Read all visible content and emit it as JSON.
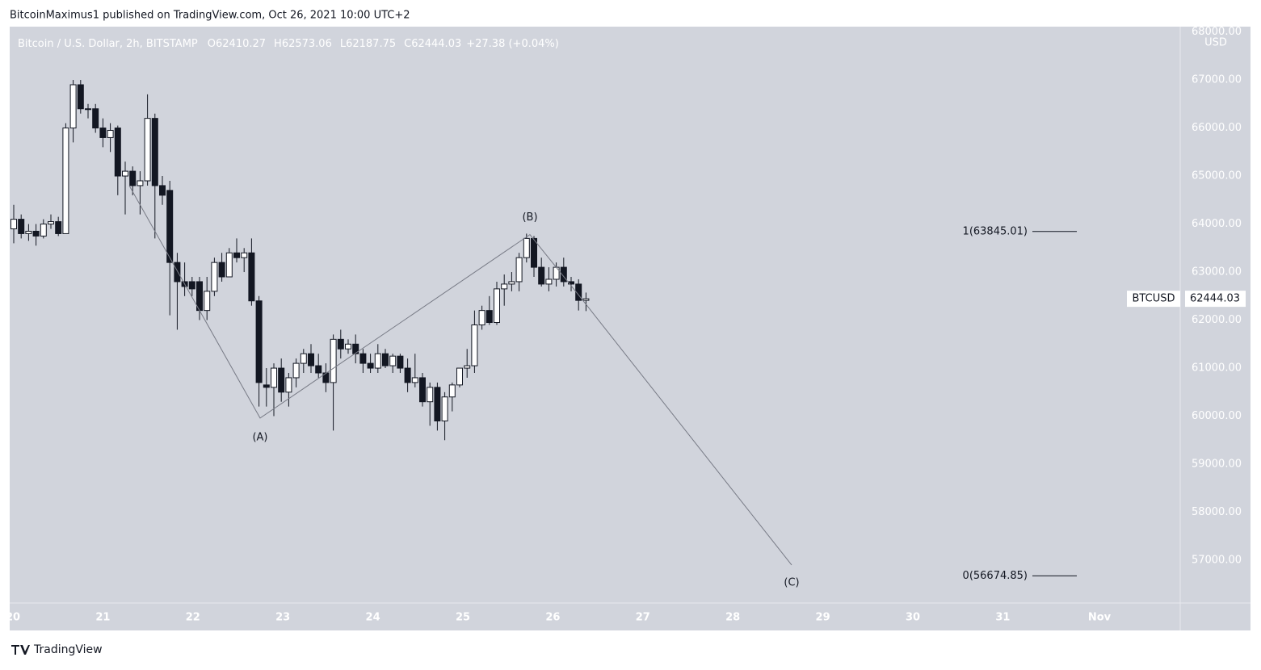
{
  "header": {
    "publisher": "BitcoinMaximus1 published on TradingView.com, Oct 26, 2021 10:00 UTC+2",
    "brand": "TradingView"
  },
  "chart_data": {
    "type": "candlestick",
    "symbol": "Bitcoin / U.S. Dollar, 2h, BITSTAMP",
    "legend_ohlc": [
      {
        "key": "O",
        "value": "62410.27"
      },
      {
        "key": "H",
        "value": "62573.06"
      },
      {
        "key": "L",
        "value": "62187.75"
      },
      {
        "key": "C",
        "value": "62444.03"
      }
    ],
    "change": "+27.38 (+0.04%)",
    "y_unit": "USD",
    "x_labels": [
      "20",
      "21",
      "22",
      "23",
      "24",
      "25",
      "26",
      "27",
      "28",
      "29",
      "30",
      "31",
      "Nov"
    ],
    "ylim": [
      56110,
      68110
    ],
    "yticks": [
      {
        "value": 57000,
        "label": "57000.00"
      },
      {
        "value": 58000,
        "label": "58000.00"
      },
      {
        "value": 59000,
        "label": "59000.00"
      },
      {
        "value": 60000,
        "label": "60000.00"
      },
      {
        "value": 61000,
        "label": "61000.00"
      },
      {
        "value": 62000,
        "label": "62000.00"
      },
      {
        "value": 63000,
        "label": "63000.00"
      },
      {
        "value": 64000,
        "label": "64000.00"
      },
      {
        "value": 65000,
        "label": "65000.00"
      },
      {
        "value": 66000,
        "label": "66000.00"
      },
      {
        "value": 67000,
        "label": "67000.00"
      },
      {
        "value": 68000,
        "label": "68000.00"
      }
    ],
    "up_color": "#ffffff",
    "down_color": "#131722",
    "open": [
      63900,
      64100,
      63800,
      63850,
      63750,
      64000,
      64050,
      63800,
      66000,
      66900,
      66400,
      66400,
      66000,
      65800,
      66000,
      65000,
      65100,
      64800,
      64900,
      66200,
      64800,
      64700,
      63200,
      62800,
      62800,
      62800,
      62200,
      62600,
      63200,
      62900,
      63400,
      63300,
      63400,
      62400,
      60650,
      60600,
      61000,
      60500,
      60800,
      61100,
      61300,
      61050,
      60900,
      60700,
      61600,
      61400,
      61500,
      61300,
      61100,
      61000,
      61300,
      61050,
      61250,
      61000,
      60700,
      60800,
      60300,
      60600,
      59900,
      60400,
      60650,
      61000,
      61050,
      61900,
      62200,
      61950,
      62650,
      62750,
      62800,
      63300,
      63700,
      63100,
      62750,
      62850,
      63100,
      62800,
      62750,
      62410.27
    ],
    "high": [
      64400,
      64200,
      64000,
      64000,
      64100,
      64200,
      64150,
      66100,
      67000,
      67000,
      66500,
      66500,
      66200,
      66100,
      66050,
      65300,
      65200,
      65100,
      66700,
      66300,
      65000,
      64900,
      63400,
      63200,
      62900,
      62900,
      62900,
      63300,
      63400,
      63500,
      63700,
      63500,
      63700,
      62500,
      61000,
      61100,
      61200,
      60900,
      61200,
      61400,
      61500,
      61300,
      61100,
      61700,
      61800,
      61600,
      61700,
      61400,
      61300,
      61500,
      61400,
      61300,
      61300,
      61200,
      61300,
      60900,
      60700,
      60700,
      60500,
      60700,
      61000,
      61400,
      62200,
      62300,
      62500,
      62800,
      62950,
      63000,
      63400,
      63800,
      63750,
      63300,
      63100,
      63200,
      63300,
      62900,
      62850,
      62573.06
    ],
    "low": [
      63600,
      63700,
      63650,
      63550,
      63700,
      63900,
      63750,
      63800,
      65700,
      66300,
      66200,
      65900,
      65600,
      65500,
      64600,
      64200,
      64600,
      64200,
      64800,
      63700,
      64400,
      62100,
      61800,
      62500,
      62500,
      62000,
      62000,
      62500,
      62800,
      62900,
      63200,
      63000,
      62300,
      60200,
      60200,
      60000,
      60300,
      60200,
      60600,
      60900,
      60900,
      60800,
      60500,
      59700,
      61200,
      61300,
      61100,
      60900,
      60900,
      60900,
      61000,
      60900,
      60900,
      60500,
      60600,
      60200,
      59800,
      59700,
      59500,
      60100,
      60600,
      60800,
      60900,
      61800,
      61900,
      61900,
      62300,
      62600,
      62600,
      63200,
      62900,
      62700,
      62600,
      62700,
      62700,
      62600,
      62200,
      62187.75
    ],
    "close": [
      64100,
      63800,
      63850,
      63750,
      64000,
      64050,
      63800,
      66000,
      66900,
      66400,
      66400,
      66000,
      65800,
      65950,
      65000,
      65100,
      64800,
      64900,
      66200,
      64800,
      64600,
      63200,
      62800,
      62700,
      62650,
      62200,
      62600,
      63200,
      62900,
      63400,
      63300,
      63400,
      62400,
      60700,
      60600,
      61000,
      60500,
      60800,
      61100,
      61300,
      61050,
      60900,
      60700,
      61600,
      61400,
      61500,
      61300,
      61100,
      61000,
      61300,
      61050,
      61250,
      61000,
      60700,
      60800,
      60300,
      60600,
      59900,
      60400,
      60650,
      61000,
      61050,
      61900,
      62200,
      61950,
      62650,
      62750,
      62800,
      63300,
      63700,
      63100,
      62750,
      62850,
      63100,
      62800,
      62750,
      62410.27,
      62444.03
    ],
    "waves": [
      {
        "label": null,
        "value": 64800
      },
      {
        "label": "(A)",
        "value": 59960
      },
      {
        "label": "(B)",
        "value": 63780
      },
      {
        "label": null,
        "value": 62444.03
      },
      {
        "label": "(C)",
        "value": 56900
      }
    ],
    "fib_levels": [
      {
        "label": "1(63845.01)",
        "value": 63845.01
      },
      {
        "label": "0(56674.85)",
        "value": 56674.85
      }
    ],
    "last_price": {
      "symbol": "BTCUSD",
      "value": 62444.03,
      "label": "62444.03"
    }
  }
}
